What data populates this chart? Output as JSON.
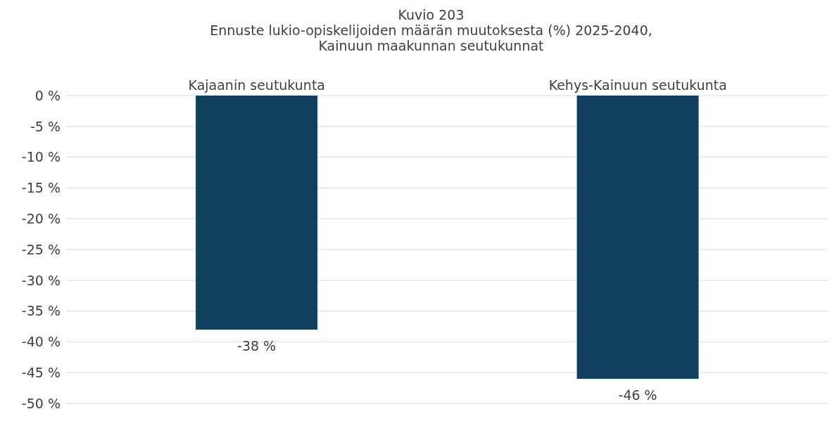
{
  "chart_data": {
    "type": "bar",
    "title": "Kuvio 203\nEnnuste lukio-opiskelijoiden määrän muutoksesta (%) 2025-2040,\nKainuun maakunnan seutukunnat",
    "categories": [
      "Kajaanin seutukunta",
      "Kehys-Kainuun seutukunta"
    ],
    "values": [
      -38,
      -46
    ],
    "value_labels": [
      "-38 %",
      "-46 %"
    ],
    "color": "#124160",
    "ylim": [
      -50,
      0
    ],
    "yticks": [
      {
        "value": 0,
        "label": "0 %"
      },
      {
        "value": -5,
        "label": "-5 %"
      },
      {
        "value": -10,
        "label": "-10 %"
      },
      {
        "value": -15,
        "label": "-15 %"
      },
      {
        "value": -20,
        "label": "-20 %"
      },
      {
        "value": -25,
        "label": "-25 %"
      },
      {
        "value": -30,
        "label": "-30 %"
      },
      {
        "value": -35,
        "label": "-35 %"
      },
      {
        "value": -40,
        "label": "-40 %"
      },
      {
        "value": -45,
        "label": "-45 %"
      },
      {
        "value": -50,
        "label": "-50 %"
      }
    ],
    "grid": "y",
    "legend": false
  }
}
